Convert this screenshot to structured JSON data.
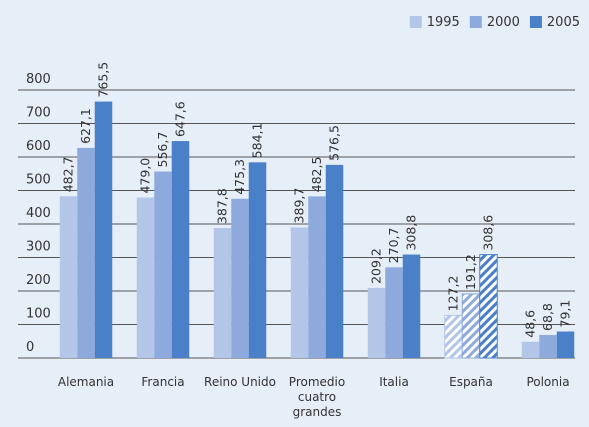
{
  "chart_data": {
    "type": "bar",
    "categories": [
      "Alemania",
      "Francia",
      "Reino Unido",
      "Promedio cuatro grandes",
      "Italia",
      "España",
      "Polonia"
    ],
    "series": [
      {
        "name": "1995",
        "color": "#b3c6e7",
        "values": [
          482.7,
          479.0,
          387.8,
          389.7,
          209.2,
          127.2,
          48.6
        ],
        "value_labels": [
          "482,7",
          "479,0",
          "387,8",
          "389,7",
          "209,2",
          "127,2",
          "48,6"
        ]
      },
      {
        "name": "2000",
        "color": "#8eaadd",
        "values": [
          627.1,
          556.7,
          475.3,
          482.5,
          270.7,
          191.2,
          68.8
        ],
        "value_labels": [
          "627,1",
          "556,7",
          "475,3",
          "482,5",
          "270,7",
          "191,2",
          "68,8"
        ]
      },
      {
        "name": "2005",
        "color": "#4a80c8",
        "values": [
          765.5,
          647.6,
          584.1,
          576.5,
          308.8,
          308.6,
          79.1
        ],
        "value_labels": [
          "765,5",
          "647,6",
          "584,1",
          "576,5",
          "308,8",
          "308,6",
          "79,1"
        ]
      }
    ],
    "hatched_category_index": 5,
    "ylim": [
      0,
      800
    ],
    "yticks": [
      0,
      100,
      200,
      300,
      400,
      500,
      600,
      700,
      800
    ],
    "grid": true,
    "legend": "top-right"
  }
}
